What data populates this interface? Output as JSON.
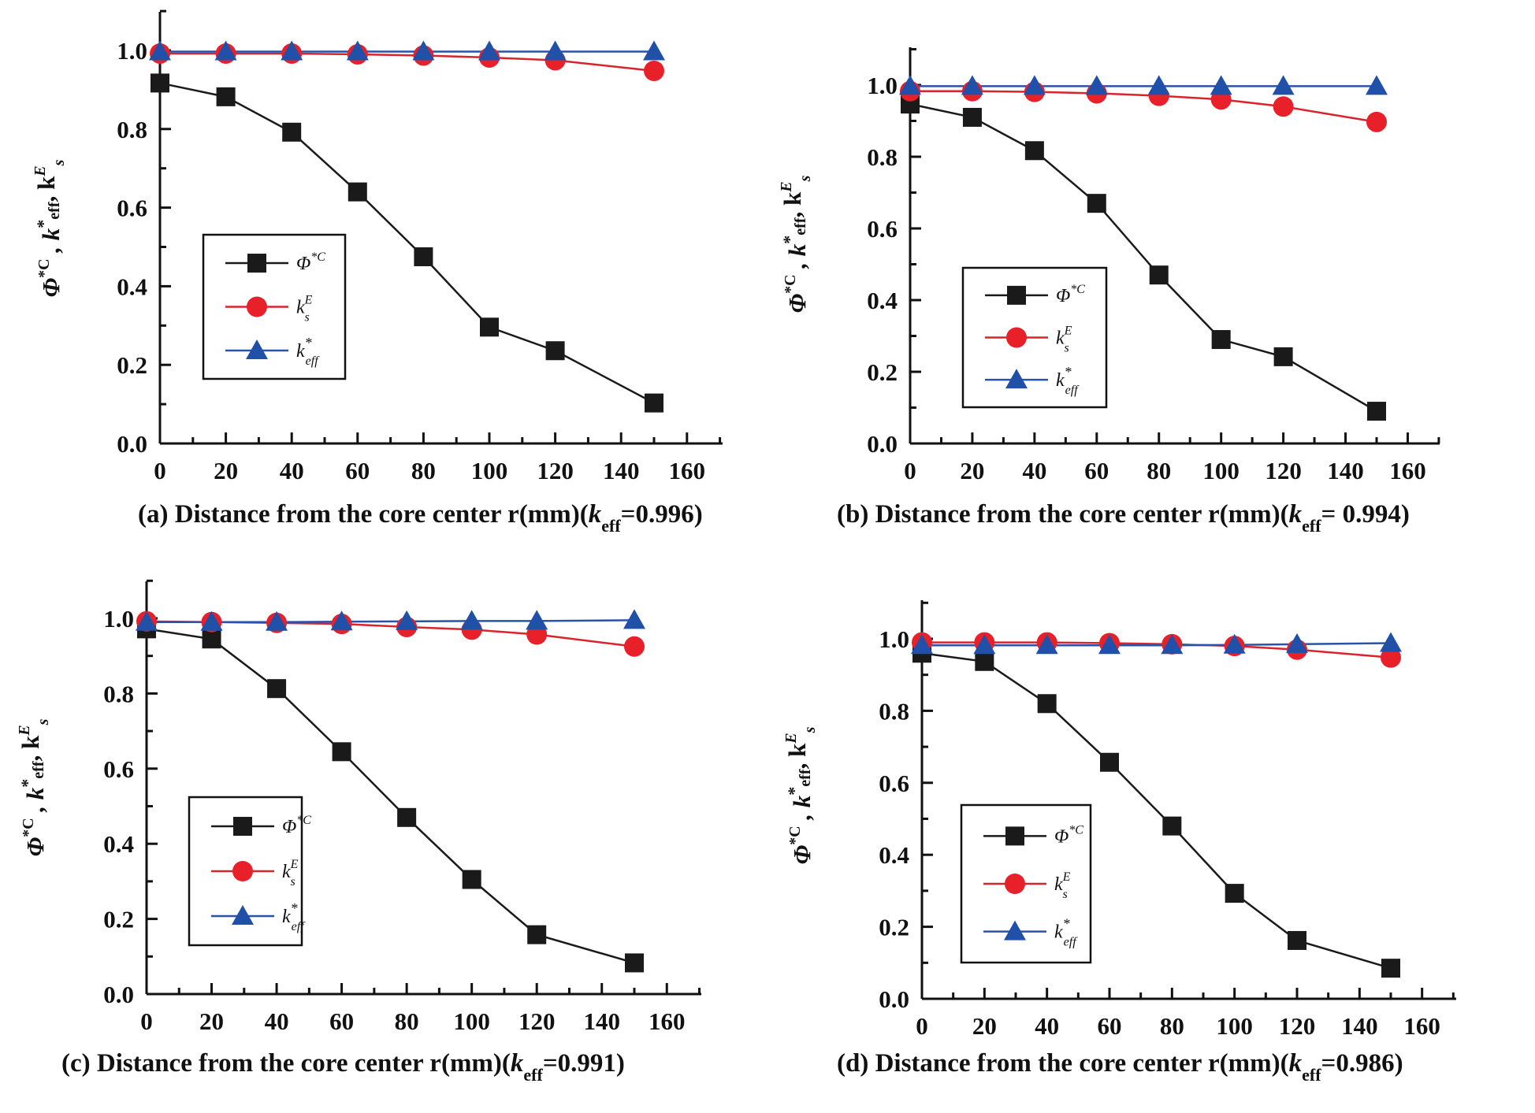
{
  "colors": {
    "phi": "#1a1a1a",
    "ks": "#e8202a",
    "keff": "#2050a8",
    "ks_line": "#d8242c",
    "keff_line": "#2a52a8"
  },
  "legend_labels": {
    "phi": "Φ*C",
    "ks": "ksE",
    "keff": "k*eff"
  },
  "chart_data": [
    {
      "type": "line",
      "panel": "a",
      "xlabel": "(a)  Distance from the core center r(mm)(keff=0.996)",
      "ylabel": "Φ*C, k*eff, ksE",
      "xlim": [
        0,
        170
      ],
      "ylim": [
        0,
        1.1
      ],
      "xticks": [
        "0",
        "20",
        "40",
        "60",
        "80",
        "100",
        "120",
        "140",
        "160"
      ],
      "yticks": [
        "0.0",
        "0.2",
        "0.4",
        "0.6",
        "0.8",
        "1.0"
      ],
      "x": [
        0,
        20,
        40,
        60,
        80,
        100,
        120,
        150
      ],
      "series": [
        {
          "name": "Φ*C",
          "key": "phi",
          "values": [
            0.917,
            0.882,
            0.792,
            0.64,
            0.475,
            0.296,
            0.236,
            0.103
          ]
        },
        {
          "name": "ksE",
          "key": "ks",
          "values": [
            0.992,
            0.992,
            0.992,
            0.99,
            0.987,
            0.982,
            0.975,
            0.948
          ]
        },
        {
          "name": "k*eff",
          "key": "keff",
          "values": [
            0.997,
            0.997,
            0.997,
            0.997,
            0.997,
            0.997,
            0.997,
            0.997
          ]
        }
      ],
      "caption": {
        "pre": "(a)  Distance from the core center r(mm)(",
        "sub": "eff",
        "post": "=0.996)"
      }
    },
    {
      "type": "line",
      "panel": "b",
      "xlabel": "(b) Distance from the core center r(mm)(keff= 0.994)",
      "ylabel": "Φ*C, k*eff, ksE",
      "xlim": [
        0,
        170
      ],
      "ylim": [
        0,
        1.1
      ],
      "xticks": [
        "0",
        "20",
        "40",
        "60",
        "80",
        "100",
        "120",
        "140",
        "160"
      ],
      "yticks": [
        "0.0",
        "0.2",
        "0.4",
        "0.6",
        "0.8",
        "1.0"
      ],
      "x": [
        0,
        20,
        40,
        60,
        80,
        100,
        120,
        150
      ],
      "series": [
        {
          "name": "Φ*C",
          "key": "phi",
          "values": [
            0.947,
            0.91,
            0.817,
            0.67,
            0.47,
            0.29,
            0.242,
            0.09
          ]
        },
        {
          "name": "ksE",
          "key": "ks",
          "values": [
            0.983,
            0.983,
            0.981,
            0.977,
            0.97,
            0.96,
            0.94,
            0.897
          ]
        },
        {
          "name": "k*eff",
          "key": "keff",
          "values": [
            0.997,
            0.997,
            0.997,
            0.997,
            0.997,
            0.997,
            0.997,
            0.997
          ]
        }
      ],
      "caption": {
        "pre": "(b) Distance from the core center r(mm)(",
        "sub": "eff",
        "post": "= 0.994)"
      }
    },
    {
      "type": "line",
      "panel": "c",
      "xlabel": "(c) Distance from the core center r(mm)(keff=0.991)",
      "ylabel": "Φ*C, k*eff, ksE",
      "xlim": [
        0,
        170
      ],
      "ylim": [
        0,
        1.1
      ],
      "xticks": [
        "0",
        "20",
        "40",
        "60",
        "80",
        "100",
        "120",
        "140",
        "160"
      ],
      "yticks": [
        "0.0",
        "0.2",
        "0.4",
        "0.6",
        "0.8",
        "1.0"
      ],
      "x": [
        0,
        20,
        40,
        60,
        80,
        100,
        120,
        150
      ],
      "series": [
        {
          "name": "Φ*C",
          "key": "phi",
          "values": [
            0.972,
            0.945,
            0.813,
            0.645,
            0.47,
            0.305,
            0.158,
            0.083
          ]
        },
        {
          "name": "ksE",
          "key": "ks",
          "values": [
            0.992,
            0.99,
            0.988,
            0.985,
            0.977,
            0.97,
            0.957,
            0.925
          ]
        },
        {
          "name": "k*eff",
          "key": "keff",
          "values": [
            0.99,
            0.99,
            0.99,
            0.991,
            0.992,
            0.993,
            0.993,
            0.995
          ]
        }
      ],
      "caption": {
        "pre": "(c) Distance from the core center r(mm)(",
        "sub": "eff",
        "post": "=0.991)"
      }
    },
    {
      "type": "line",
      "panel": "d",
      "xlabel": "(d)  Distance from the core center r(mm)(keff=0.986)",
      "ylabel": "Φ*C, k*eff, ksE",
      "xlim": [
        0,
        170
      ],
      "ylim": [
        0,
        1.1
      ],
      "xticks": [
        "0",
        "20",
        "40",
        "60",
        "80",
        "100",
        "120",
        "140",
        "160"
      ],
      "yticks": [
        "0.0",
        "0.2",
        "0.4",
        "0.6",
        "0.8",
        "1.0"
      ],
      "x": [
        0,
        20,
        40,
        60,
        80,
        100,
        120,
        150
      ],
      "series": [
        {
          "name": "Φ*C",
          "key": "phi",
          "values": [
            0.96,
            0.937,
            0.82,
            0.657,
            0.48,
            0.293,
            0.162,
            0.085
          ]
        },
        {
          "name": "ksE",
          "key": "ks",
          "values": [
            0.99,
            0.99,
            0.99,
            0.988,
            0.985,
            0.98,
            0.97,
            0.948
          ]
        },
        {
          "name": "k*eff",
          "key": "keff",
          "values": [
            0.982,
            0.982,
            0.982,
            0.982,
            0.982,
            0.983,
            0.985,
            0.988
          ]
        }
      ],
      "caption": {
        "pre": "(d)  Distance from the core center r(mm)(",
        "sub": "eff",
        "post": "=0.986)"
      }
    }
  ]
}
